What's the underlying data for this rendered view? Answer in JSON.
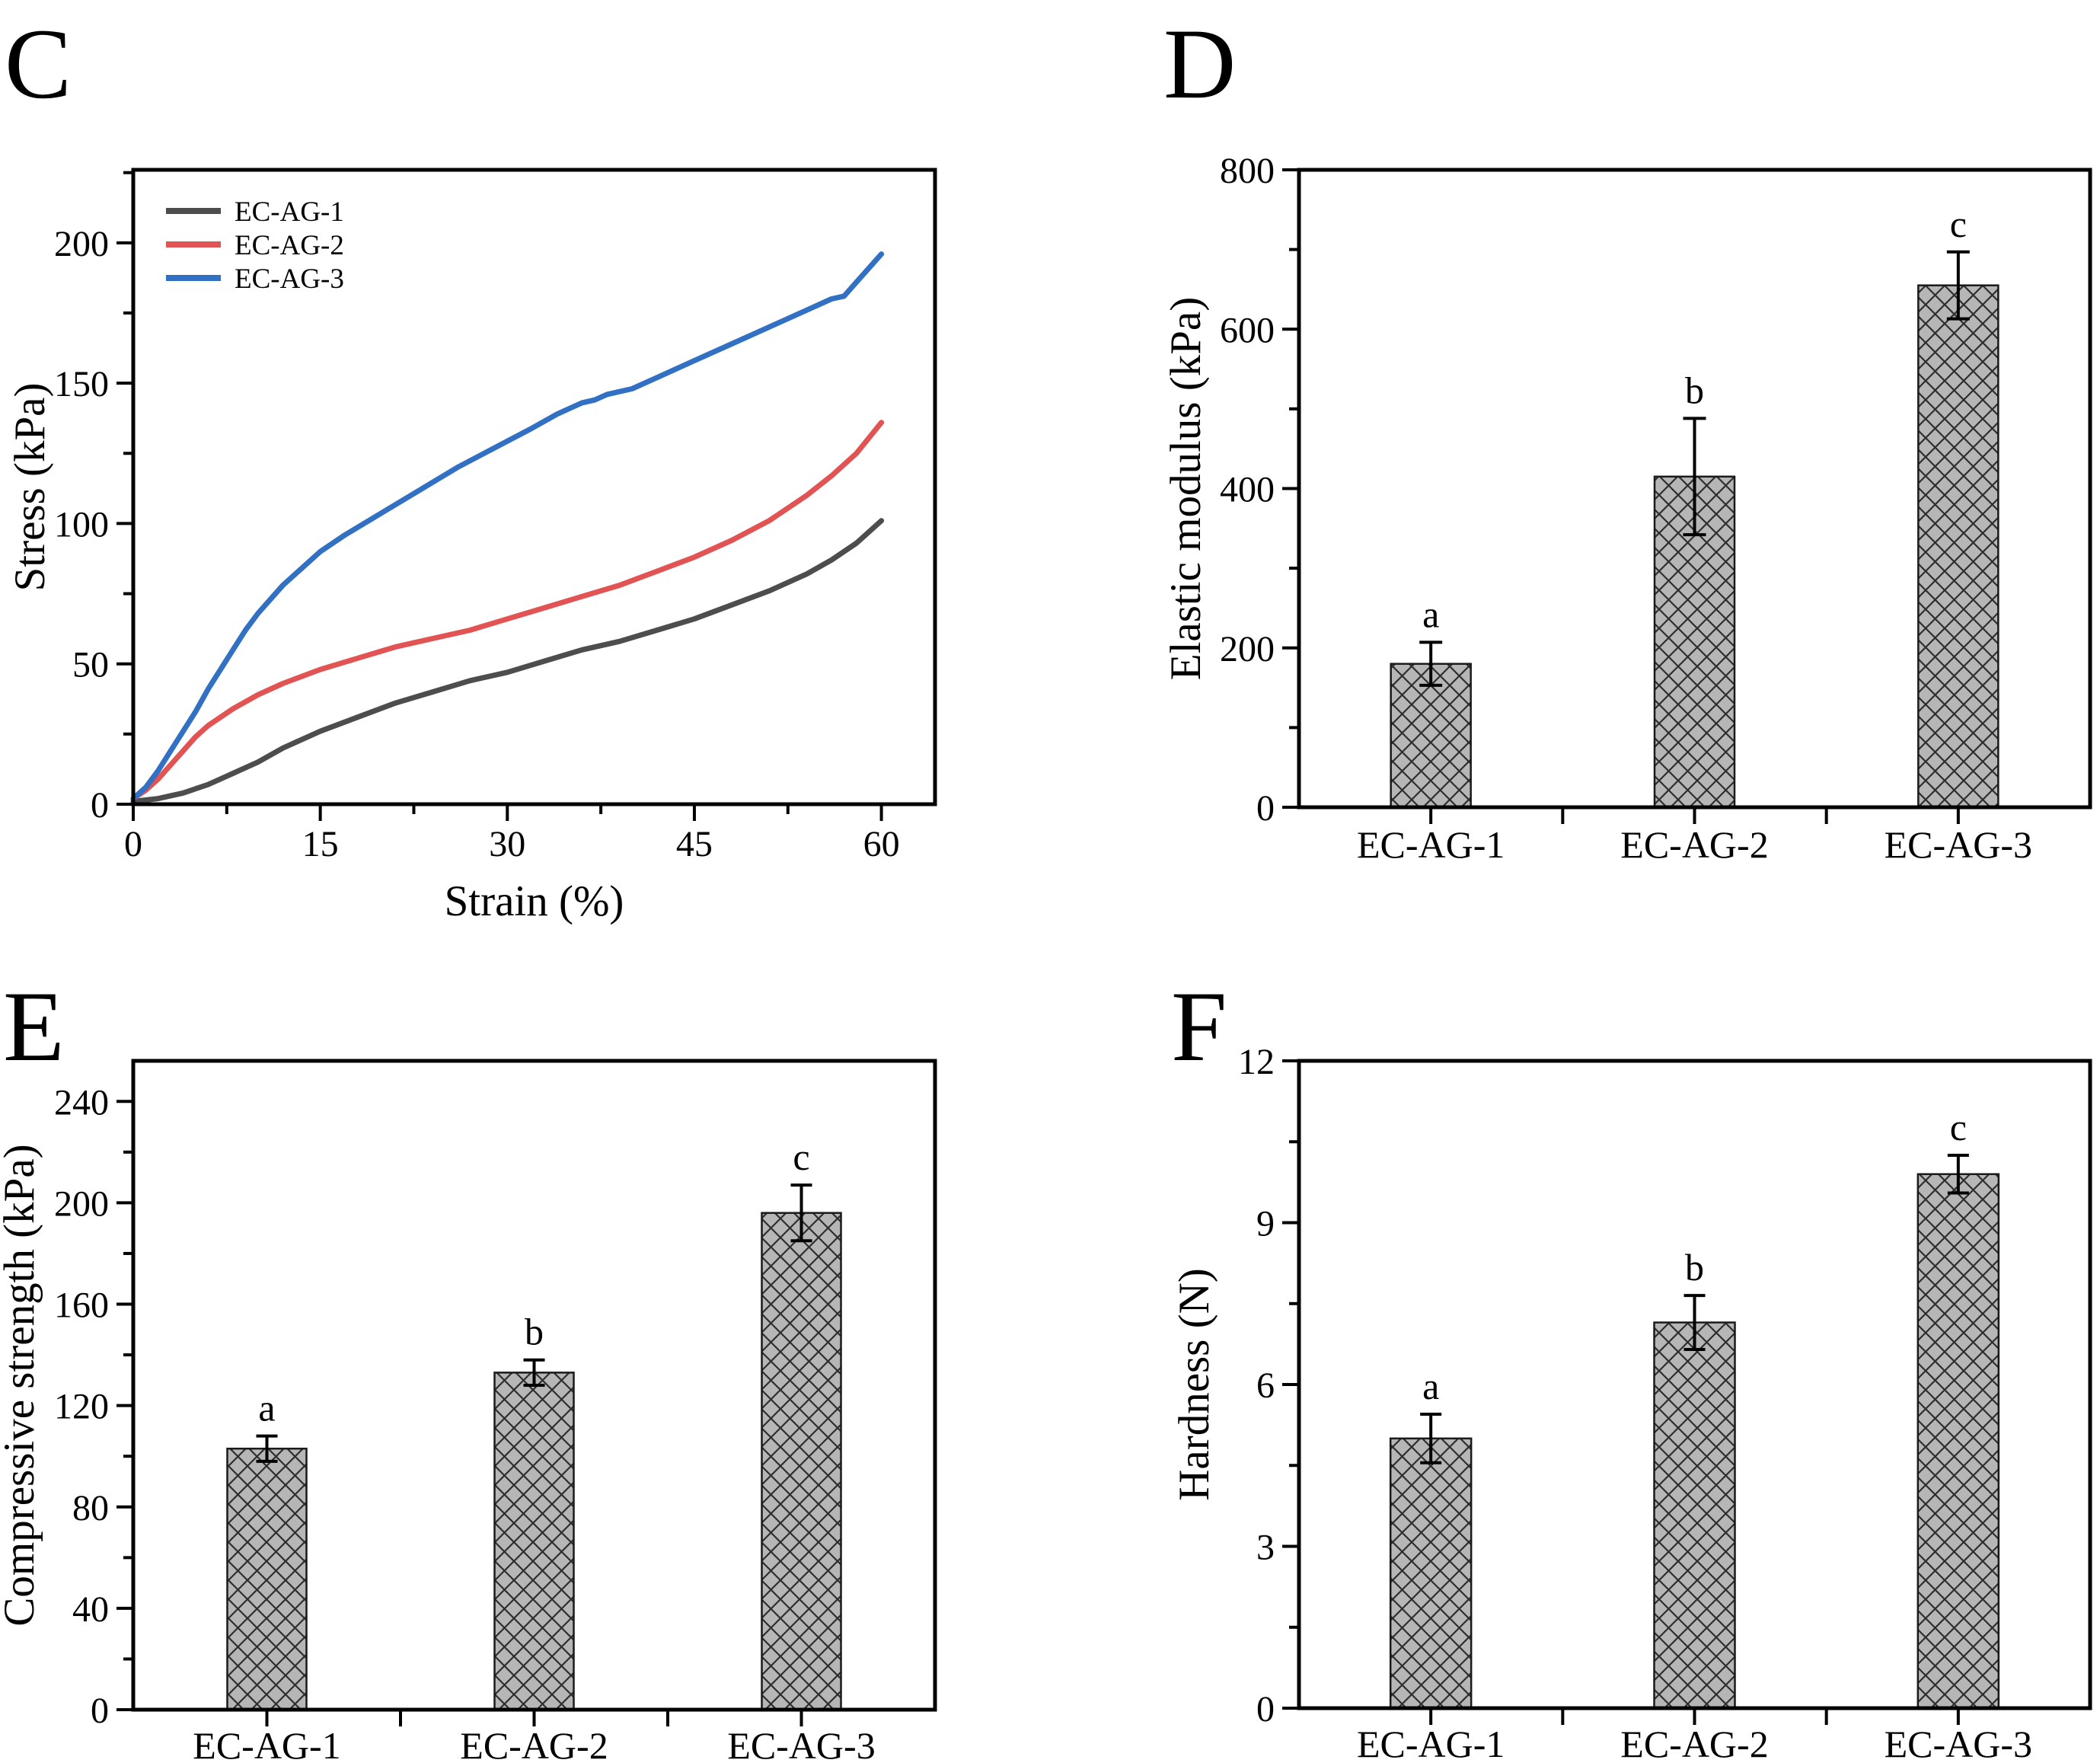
{
  "figure_title": "",
  "panel_letters": [
    "C",
    "D",
    "E",
    "F"
  ],
  "colors": {
    "axis": "#000000",
    "text": "#000000",
    "bar_fill": "#b6b6b6",
    "bar_hatch": "#2e2e2e",
    "bar_border": "#1a1a1a",
    "series_ec_ag_1": "#4d4d4d",
    "series_ec_ag_2": "#e25353",
    "series_ec_ag_3": "#3170c3"
  },
  "chart_data": [
    {
      "panel_label": "C",
      "type": "line",
      "title": "",
      "xlabel": "Strain (%)",
      "ylabel": "Stress (kPa)",
      "xlim": [
        0,
        64.3
      ],
      "ylim": [
        0,
        226
      ],
      "xticks": [
        0,
        15,
        30,
        45,
        60
      ],
      "xminor": [
        7.5,
        22.5,
        37.5,
        52.5
      ],
      "yticks": [
        0,
        50,
        100,
        150,
        200
      ],
      "yminor": [
        25,
        75,
        125,
        175,
        225
      ],
      "grid": false,
      "legend_position": "top-left",
      "series": [
        {
          "name": "EC-AG-1",
          "color": "#4d4d4d",
          "x": [
            0,
            2,
            4,
            6,
            8,
            10,
            12,
            15,
            18,
            21,
            24,
            27,
            30,
            33,
            36,
            39,
            42,
            45,
            48,
            51,
            54,
            56,
            58,
            60
          ],
          "y": [
            1,
            2,
            4,
            7,
            11,
            15,
            20,
            26,
            31,
            36,
            40,
            44,
            47,
            51,
            55,
            58,
            62,
            66,
            71,
            76,
            82,
            87,
            93,
            101
          ]
        },
        {
          "name": "EC-AG-2",
          "color": "#e25353",
          "x": [
            0,
            1,
            2,
            3,
            4,
            5,
            6,
            8,
            10,
            12,
            15,
            18,
            21,
            24,
            27,
            30,
            33,
            36,
            39,
            42,
            45,
            48,
            51,
            54,
            56,
            58,
            60
          ],
          "y": [
            2,
            5,
            9,
            14,
            19,
            24,
            28,
            34,
            39,
            43,
            48,
            52,
            56,
            59,
            62,
            66,
            70,
            74,
            78,
            83,
            88,
            94,
            101,
            110,
            117,
            125,
            136
          ]
        },
        {
          "name": "EC-AG-3",
          "color": "#3170c3",
          "x": [
            0,
            1,
            2,
            3,
            4,
            5,
            6,
            7,
            8,
            9,
            10,
            12,
            14,
            15,
            17,
            20,
            23,
            26,
            29,
            32,
            34,
            36,
            37,
            38,
            40,
            42,
            45,
            48,
            51,
            54,
            56,
            57,
            58,
            60
          ],
          "y": [
            2,
            6,
            12,
            19,
            26,
            33,
            41,
            48,
            55,
            62,
            68,
            78,
            86,
            90,
            96,
            104,
            112,
            120,
            127,
            134,
            139,
            143,
            144,
            146,
            148,
            152,
            158,
            164,
            170,
            176,
            180,
            181,
            186,
            196
          ]
        }
      ]
    },
    {
      "panel_label": "D",
      "type": "bar",
      "title": "",
      "xlabel": "",
      "ylabel": "Elastic modulus (kPa)",
      "categories": [
        "EC-AG-1",
        "EC-AG-2",
        "EC-AG-3"
      ],
      "values": [
        180,
        415,
        655
      ],
      "errors": [
        27,
        73,
        42
      ],
      "sig_letters": [
        "a",
        "b",
        "c"
      ],
      "ylim": [
        0,
        800
      ],
      "yticks": [
        0,
        200,
        400,
        600,
        800
      ],
      "yminor": [
        100,
        300,
        500,
        700
      ],
      "grid": false,
      "bar_fill": "#b6b6b6",
      "hatch": "crosshatch"
    },
    {
      "panel_label": "E",
      "type": "bar",
      "title": "",
      "xlabel": "",
      "ylabel": "Compressive strength (kPa)",
      "categories": [
        "EC-AG-1",
        "EC-AG-2",
        "EC-AG-3"
      ],
      "values": [
        103,
        133,
        196
      ],
      "errors": [
        5,
        5,
        11
      ],
      "sig_letters": [
        "a",
        "b",
        "c"
      ],
      "ylim": [
        0,
        256
      ],
      "yticks": [
        0,
        40,
        80,
        120,
        160,
        200,
        240
      ],
      "yminor": [
        20,
        60,
        100,
        140,
        180,
        220
      ],
      "grid": false,
      "bar_fill": "#b6b6b6",
      "hatch": "crosshatch"
    },
    {
      "panel_label": "F",
      "type": "bar",
      "title": "",
      "xlabel": "",
      "ylabel": "Hardness (N)",
      "categories": [
        "EC-AG-1",
        "EC-AG-2",
        "EC-AG-3"
      ],
      "values": [
        5.0,
        7.15,
        9.9
      ],
      "errors": [
        0.45,
        0.5,
        0.35
      ],
      "sig_letters": [
        "a",
        "b",
        "c"
      ],
      "ylim": [
        0,
        12
      ],
      "yticks": [
        0,
        3,
        6,
        9,
        12
      ],
      "yminor": [
        1.5,
        4.5,
        7.5,
        10.5
      ],
      "grid": false,
      "bar_fill": "#b6b6b6",
      "hatch": "crosshatch"
    }
  ]
}
